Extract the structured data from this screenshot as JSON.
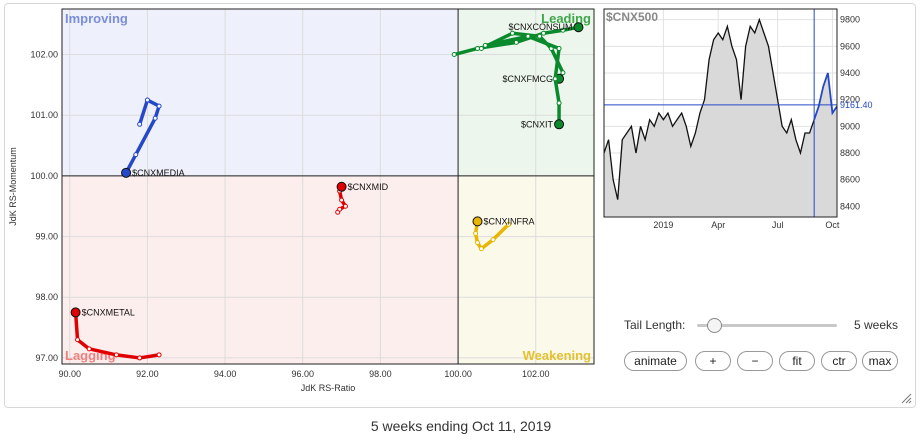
{
  "chart_data": [
    {
      "type": "scatter",
      "xlabel": "JdK RS-Ratio",
      "ylabel": "JdK RS-Momentum",
      "xlim": [
        89.8,
        103.5
      ],
      "ylim": [
        96.9,
        102.75
      ],
      "x_ticks": [
        "90.00",
        "92.00",
        "94.00",
        "96.00",
        "98.00",
        "100.00",
        "102.00"
      ],
      "y_ticks": [
        "97.00",
        "98.00",
        "99.00",
        "100.00",
        "101.00",
        "102.00"
      ],
      "quadrants": [
        "Improving",
        "Leading",
        "Weakening",
        "Lagging"
      ],
      "colors": {
        "improving": "#7b8fd9",
        "leading": "#3ea64a",
        "weakening": "#e3c12f",
        "lagging": "#f08080"
      },
      "series": [
        {
          "name": "$CNXCONSUM",
          "color": "#0a8a2c",
          "x": [
            99.9,
            100.5,
            101.5,
            102.2,
            102.7,
            103.1
          ],
          "y": [
            102.0,
            102.1,
            102.2,
            102.35,
            102.4,
            102.45
          ]
        },
        {
          "name": "$CNXFMCG",
          "color": "#0a8a2c",
          "x": [
            100.6,
            101.4,
            102.1,
            102.4,
            102.7,
            102.6
          ],
          "y": [
            102.1,
            102.35,
            102.3,
            102.1,
            101.7,
            101.6
          ]
        },
        {
          "name": "$CNXIT",
          "color": "#0a8a2c",
          "x": [
            100.7,
            101.8,
            102.6,
            102.5,
            102.6,
            102.6
          ],
          "y": [
            102.15,
            102.3,
            102.1,
            101.6,
            101.2,
            100.85
          ]
        },
        {
          "name": "$CNXMEDIA",
          "color": "#2448c8",
          "x": [
            91.8,
            92.0,
            92.3,
            92.2,
            91.7,
            91.45
          ],
          "y": [
            100.85,
            101.25,
            101.15,
            100.95,
            100.35,
            100.05
          ]
        },
        {
          "name": "$CNXMID",
          "color": "#e00000",
          "x": [
            96.9,
            96.95,
            97.1,
            97.0,
            96.95,
            97.0
          ],
          "y": [
            99.4,
            99.45,
            99.5,
            99.6,
            99.75,
            99.82
          ]
        },
        {
          "name": "$CNXMETAL",
          "color": "#e00000",
          "x": [
            92.3,
            91.8,
            91.2,
            90.5,
            90.2,
            90.15
          ],
          "y": [
            97.05,
            97.0,
            97.05,
            97.15,
            97.3,
            97.75
          ]
        },
        {
          "name": "$CNXINFRA",
          "color": "#e8b600",
          "x": [
            101.3,
            100.9,
            100.6,
            100.5,
            100.45,
            100.5
          ],
          "y": [
            99.2,
            98.95,
            98.8,
            98.9,
            99.05,
            99.25
          ]
        }
      ]
    },
    {
      "type": "area",
      "title": "$CNX500",
      "x_ticks": [
        "2019",
        "Apr",
        "Jul",
        "Oct"
      ],
      "y_ticks": [
        "8400",
        "8600",
        "8800",
        "9000",
        "9200",
        "9400",
        "9600",
        "9800"
      ],
      "ylim": [
        8320,
        9880
      ],
      "last_value": "9161.40",
      "last_value_num": 9161.4,
      "values": [
        8800,
        8900,
        8600,
        8450,
        8900,
        8950,
        9000,
        8800,
        9000,
        8900,
        9050,
        9000,
        9100,
        9050,
        9100,
        9000,
        9050,
        9100,
        9000,
        8850,
        8950,
        9100,
        9200,
        9500,
        9650,
        9700,
        9650,
        9750,
        9600,
        9500,
        9200,
        9600,
        9750,
        9700,
        9800,
        9700,
        9600,
        9400,
        9200,
        9000,
        8950,
        9050,
        8900,
        8800,
        8950,
        8950,
        9050,
        9150,
        9300,
        9400,
        9100,
        9150
      ]
    }
  ],
  "controls": {
    "tail_label": "Tail Length:",
    "tail_value": "5 weeks",
    "tail_fraction": 0.12,
    "buttons": [
      "animate",
      "+",
      "−",
      "fit",
      "ctr",
      "max"
    ]
  },
  "caption": "5 weeks ending Oct 11, 2019"
}
